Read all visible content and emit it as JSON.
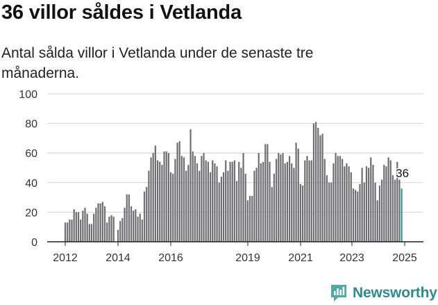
{
  "title": "36 villor såldes i Vetlanda",
  "subtitle": "Antal sålda villor i Vetlanda under de senaste tre månaderna.",
  "brand": "Newsworthy",
  "colors": {
    "bar": "#6e6d72",
    "highlight": "#2f9a95",
    "brand": "#2f8a8a"
  },
  "chart_data": {
    "type": "bar",
    "ylim": [
      0,
      100
    ],
    "yticks": [
      0,
      20,
      40,
      60,
      80,
      100
    ],
    "xticks": [
      "2012",
      "2014",
      "2016",
      "2019",
      "2021",
      "2023",
      "2025"
    ],
    "x_start": "2011-12",
    "x_step": "1 month",
    "grid": true,
    "highlight_label": "36",
    "values": [
      13,
      13,
      15,
      15,
      22,
      20,
      20,
      15,
      21,
      23,
      19,
      12,
      12,
      19,
      23,
      26,
      26,
      27,
      24,
      13,
      17,
      18,
      17,
      0,
      8,
      14,
      16,
      23,
      32,
      32,
      24,
      21,
      22,
      17,
      19,
      15,
      34,
      37,
      48,
      57,
      60,
      65,
      55,
      54,
      52,
      61,
      61,
      60,
      47,
      46,
      56,
      67,
      68,
      58,
      57,
      48,
      52,
      76,
      61,
      58,
      53,
      48,
      58,
      60,
      55,
      54,
      47,
      55,
      53,
      51,
      40,
      44,
      47,
      55,
      48,
      54,
      54,
      55,
      41,
      54,
      50,
      60,
      46,
      28,
      31,
      31,
      48,
      50,
      60,
      53,
      54,
      66,
      66,
      54,
      37,
      46,
      56,
      60,
      59,
      60,
      53,
      54,
      58,
      53,
      50,
      67,
      63,
      39,
      38,
      55,
      58,
      55,
      55,
      80,
      81,
      77,
      72,
      73,
      56,
      45,
      40,
      40,
      53,
      60,
      58,
      58,
      56,
      51,
      53,
      51,
      47,
      36,
      35,
      34,
      39,
      50,
      40,
      51,
      50,
      57,
      52,
      40,
      28,
      38,
      42,
      52,
      51,
      57,
      55,
      45,
      42,
      54,
      42,
      36
    ]
  }
}
